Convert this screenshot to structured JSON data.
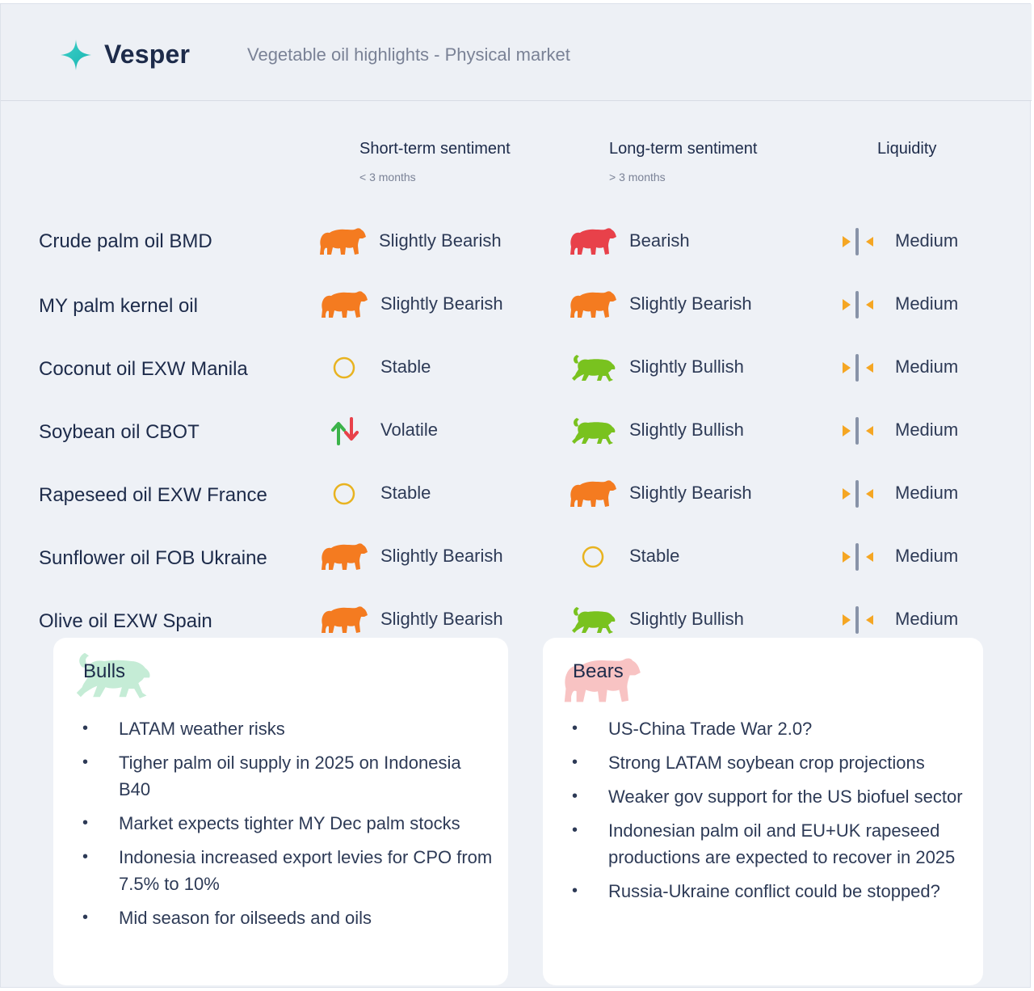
{
  "header": {
    "brand": "Vesper",
    "subtitle": "Vegetable oil highlights - Physical market"
  },
  "columns": {
    "short_term": {
      "title": "Short-term sentiment",
      "sub": "< 3 months"
    },
    "long_term": {
      "title": "Long-term sentiment",
      "sub": "> 3 months"
    },
    "liquidity": {
      "title": "Liquidity"
    }
  },
  "rows": [
    {
      "product": "Crude palm oil BMD",
      "short": {
        "icon": "bear-orange-icon",
        "label": "Slightly Bearish"
      },
      "long": {
        "icon": "bear-red-icon",
        "label": "Bearish"
      },
      "liquidity": {
        "icon": "medium-liquidity-icon",
        "label": "Medium"
      }
    },
    {
      "product": "MY palm kernel oil",
      "short": {
        "icon": "bear-orange-icon",
        "label": "Slightly Bearish"
      },
      "long": {
        "icon": "bear-orange-icon",
        "label": "Slightly Bearish"
      },
      "liquidity": {
        "icon": "medium-liquidity-icon",
        "label": "Medium"
      }
    },
    {
      "product": "Coconut oil EXW Manila",
      "short": {
        "icon": "stable-circle-icon",
        "label": "Stable"
      },
      "long": {
        "icon": "bull-green-icon",
        "label": "Slightly Bullish"
      },
      "liquidity": {
        "icon": "medium-liquidity-icon",
        "label": "Medium"
      }
    },
    {
      "product": "Soybean oil CBOT",
      "short": {
        "icon": "volatile-arrows-icon",
        "label": "Volatile"
      },
      "long": {
        "icon": "bull-green-icon",
        "label": "Slightly Bullish"
      },
      "liquidity": {
        "icon": "medium-liquidity-icon",
        "label": "Medium"
      }
    },
    {
      "product": "Rapeseed oil EXW France",
      "short": {
        "icon": "stable-circle-icon",
        "label": "Stable"
      },
      "long": {
        "icon": "bear-orange-icon",
        "label": "Slightly Bearish"
      },
      "liquidity": {
        "icon": "medium-liquidity-icon",
        "label": "Medium"
      }
    },
    {
      "product": "Sunflower oil FOB Ukraine",
      "short": {
        "icon": "bear-orange-icon",
        "label": "Slightly Bearish"
      },
      "long": {
        "icon": "stable-circle-icon",
        "label": "Stable"
      },
      "liquidity": {
        "icon": "medium-liquidity-icon",
        "label": "Medium"
      }
    },
    {
      "product": "Olive oil EXW Spain",
      "short": {
        "icon": "bear-orange-icon",
        "label": "Slightly Bearish"
      },
      "long": {
        "icon": "bull-green-icon",
        "label": "Slightly Bullish"
      },
      "liquidity": {
        "icon": "medium-liquidity-icon",
        "label": "Medium"
      }
    }
  ],
  "colors": {
    "bear_orange": "#f47b20",
    "bear_red": "#e8414a",
    "bull_green": "#79c21f",
    "stable_yellow": "#e8b320",
    "arrow_up_green": "#3bb34a",
    "arrow_down_red": "#e8414a",
    "liquidity_triangle": "#f5a623",
    "liquidity_bar": "#8893a8",
    "bulls_deco": "#c5ecd6",
    "bears_deco": "#f8c3c3"
  },
  "bulls": {
    "title": "Bulls",
    "items": [
      "LATAM weather risks",
      "Tigher palm oil supply in 2025 on Indonesia B40",
      "Market expects tighter MY Dec palm stocks",
      "Indonesia increased export levies for CPO from 7.5% to 10%",
      "Mid season for oilseeds and oils"
    ]
  },
  "bears": {
    "title": "Bears",
    "items": [
      "US-China Trade War 2.0?",
      "Strong LATAM soybean crop projections",
      "Weaker gov support for the US biofuel sector",
      "Indonesian palm oil and EU+UK rapeseed productions are expected to recover in 2025",
      "Russia-Ukraine conflict could be stopped?"
    ]
  }
}
